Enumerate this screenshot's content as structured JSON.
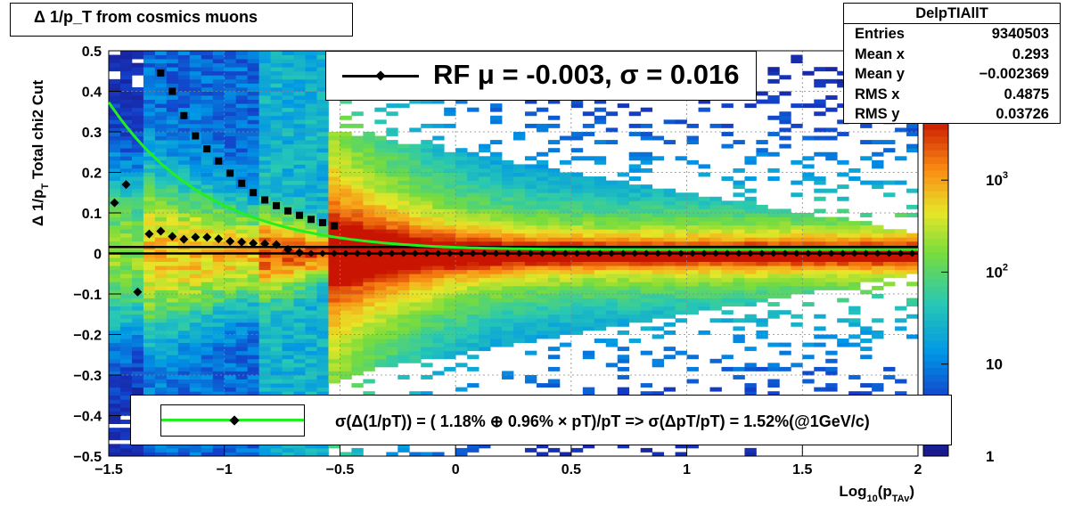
{
  "title": "Δ 1/p_T from cosmics muons",
  "stats": {
    "name": "DelpTIAllT",
    "rows": [
      {
        "label": "Entries",
        "value": "9340503"
      },
      {
        "label": "Mean x",
        "value": "0.293"
      },
      {
        "label": "Mean y",
        "value": "−0.002369"
      },
      {
        "label": "RMS x",
        "value": "0.4875"
      },
      {
        "label": "RMS y",
        "value": "0.03726"
      }
    ]
  },
  "rf_legend": "RF μ = -0.003, σ =   0.016",
  "resolution_legend": "σ(Δ(1/pT)) = ( 1.18% ⊕  0.96% × pT)/pT => σ(ΔpT/pT) =  1.52%(@1GeV/c)",
  "colors": {
    "fit_curve": "#22ee22",
    "markers": "#000000",
    "palette_low": "#1a1a8c",
    "palette_high": "#cc1a00"
  },
  "chart_data": {
    "type": "heatmap",
    "title": "Δ 1/p_T from cosmics muons",
    "xlabel": "Log10(p_TAv)",
    "ylabel": "Δ 1/p_T   Total chi2 Cut",
    "xlim": [
      -1.5,
      2.0
    ],
    "ylim": [
      -0.5,
      0.5
    ],
    "x_ticks": [
      "−1.5",
      "−1",
      "−0.5",
      "0",
      "0.5",
      "1",
      "1.5",
      "2"
    ],
    "x_tick_values": [
      -1.5,
      -1,
      -0.5,
      0,
      0.5,
      1,
      1.5,
      2
    ],
    "y_ticks": [
      "0.5",
      "0.4",
      "0.3",
      "0.2",
      "0.1",
      "0",
      "−0.1",
      "−0.2",
      "−0.3",
      "−0.4",
      "−0.5"
    ],
    "y_tick_values": [
      0.5,
      0.4,
      0.3,
      0.2,
      0.1,
      0,
      -0.1,
      -0.2,
      -0.3,
      -0.4,
      -0.5
    ],
    "z_axis": {
      "scale": "log",
      "labels": [
        "1",
        "10",
        "10^2",
        "10^3"
      ],
      "values": [
        1,
        10,
        100,
        1000
      ],
      "zlim": [
        1,
        5000
      ]
    },
    "grid": true,
    "series": [
      {
        "marker": "square",
        "x": [
          -1.275,
          -1.225,
          -1.175,
          -1.125,
          -1.075,
          -1.025,
          -0.975,
          -0.925,
          -0.875,
          -0.825,
          -0.775,
          -0.725,
          -0.675,
          -0.625,
          -0.575,
          -0.525
        ],
        "y": [
          0.445,
          0.4,
          0.34,
          0.29,
          0.258,
          0.228,
          0.198,
          0.173,
          0.15,
          0.132,
          0.118,
          0.105,
          0.094,
          0.084,
          0.076,
          0.068
        ]
      },
      {
        "marker": "diamond",
        "x": [
          -1.475,
          -1.425,
          -1.375,
          -1.325,
          -1.275,
          -1.225,
          -1.175,
          -1.125,
          -1.075,
          -1.025,
          -0.975,
          -0.925,
          -0.875,
          -0.825,
          -0.775,
          -0.725,
          -0.675
        ],
        "y": [
          0.125,
          0.17,
          -0.095,
          0.048,
          0.055,
          0.042,
          0.035,
          0.04,
          0.04,
          0.036,
          0.03,
          0.028,
          0.025,
          0.024,
          0.022,
          0.01,
          0.002
        ]
      }
    ],
    "fit": {
      "form": "sqrt(a^2 + (b*pT)^2)/pT",
      "a": 0.0118,
      "b": 0.0096
    },
    "horizontal_lines": [
      0.016,
      0.0
    ]
  }
}
